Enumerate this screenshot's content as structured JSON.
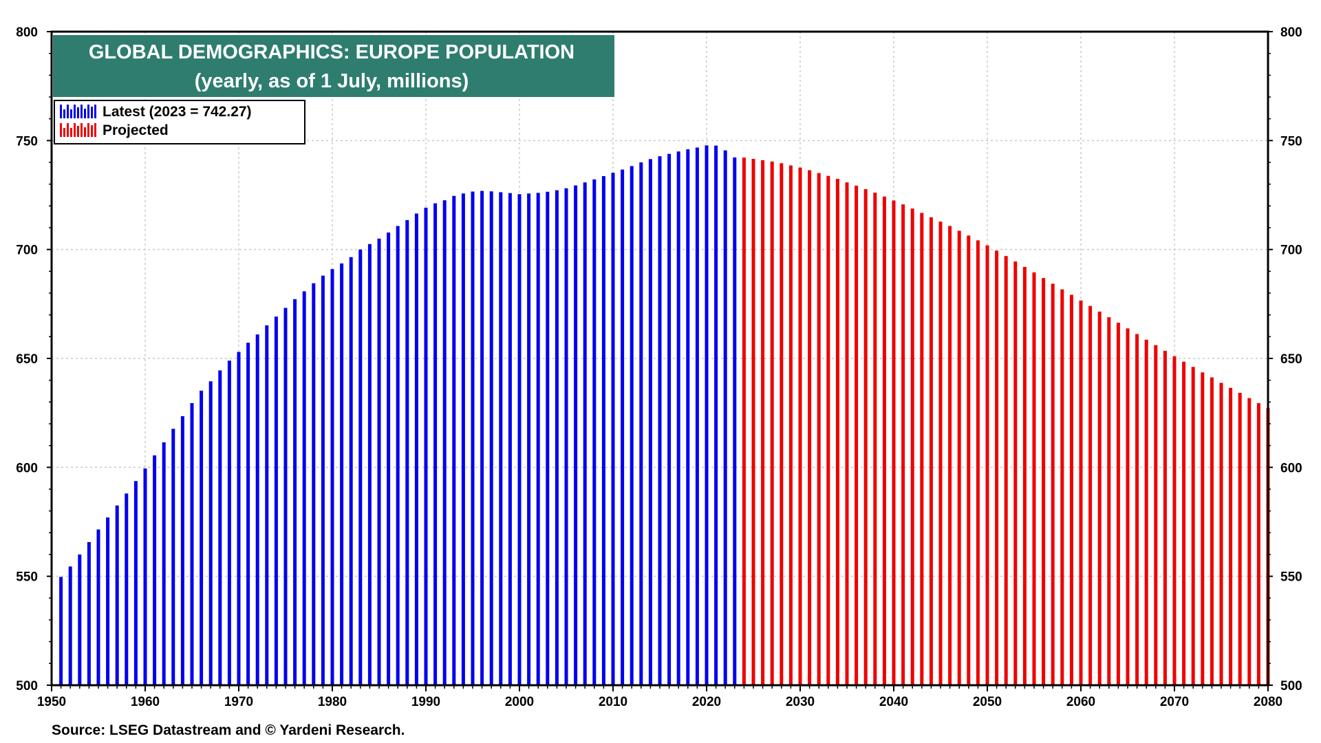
{
  "title": "GLOBAL DEMOGRAPHICS: EUROPE POPULATION",
  "subtitle": "(yearly, as of 1 July, millions)",
  "source": "Source: LSEG Datastream and © Yardeni Research.",
  "colors": {
    "title_bg": "#2e7d6f",
    "latest": "#0000ee",
    "projected": "#ee0000",
    "grid": "#c8c8c8"
  },
  "legend": {
    "latest_label": "Latest (2023 = 742.27)",
    "projected_label": "Projected",
    "placement": "top-left"
  },
  "chart_data": {
    "type": "bar",
    "title": "GLOBAL DEMOGRAPHICS: EUROPE POPULATION",
    "subtitle": "(yearly, as of 1 July, millions)",
    "xlabel": "",
    "ylabel": "",
    "ylim": [
      500,
      800
    ],
    "xlim": [
      1950,
      2080
    ],
    "yticks": [
      500,
      550,
      600,
      650,
      700,
      750,
      800
    ],
    "xticks": [
      1950,
      1960,
      1970,
      1980,
      1990,
      2000,
      2010,
      2020,
      2030,
      2040,
      2050,
      2060,
      2070,
      2080
    ],
    "grid": true,
    "axes": "left-and-right",
    "series": [
      {
        "name": "Latest (2023 = 742.27)",
        "color": "#0000ee",
        "x": [
          1951,
          1952,
          1953,
          1954,
          1955,
          1956,
          1957,
          1958,
          1959,
          1960,
          1961,
          1962,
          1963,
          1964,
          1965,
          1966,
          1967,
          1968,
          1969,
          1970,
          1971,
          1972,
          1973,
          1974,
          1975,
          1976,
          1977,
          1978,
          1979,
          1980,
          1981,
          1982,
          1983,
          1984,
          1985,
          1986,
          1987,
          1988,
          1989,
          1990,
          1991,
          1992,
          1993,
          1994,
          1995,
          1996,
          1997,
          1998,
          1999,
          2000,
          2001,
          2002,
          2003,
          2004,
          2005,
          2006,
          2007,
          2008,
          2009,
          2010,
          2011,
          2012,
          2013,
          2014,
          2015,
          2016,
          2017,
          2018,
          2019,
          2020,
          2021,
          2022,
          2023
        ],
        "values": [
          549.7,
          554.5,
          560,
          565.7,
          571.5,
          577,
          582.5,
          588,
          593.7,
          599.5,
          605.5,
          611.5,
          617.7,
          623.5,
          629.5,
          635.2,
          639.5,
          644.5,
          649,
          653,
          657.2,
          661,
          665.2,
          669.2,
          673.2,
          677.2,
          680.8,
          684.5,
          688,
          691,
          693.6,
          696.5,
          700,
          702.5,
          705,
          707.8,
          710.8,
          713.5,
          716.5,
          719.2,
          721.2,
          722.6,
          724.6,
          725.7,
          726.6,
          726.9,
          726.7,
          726.3,
          725.9,
          725.4,
          725.7,
          726,
          726.5,
          727.2,
          728.1,
          729.4,
          730.8,
          732.2,
          733.7,
          735.2,
          736.7,
          738.3,
          740,
          741.5,
          742.8,
          743.9,
          745,
          746,
          746.8,
          747.8,
          747.7,
          745.5,
          742.27
        ]
      },
      {
        "name": "Projected",
        "color": "#ee0000",
        "x": [
          2024,
          2025,
          2026,
          2027,
          2028,
          2029,
          2030,
          2031,
          2032,
          2033,
          2034,
          2035,
          2036,
          2037,
          2038,
          2039,
          2040,
          2041,
          2042,
          2043,
          2044,
          2045,
          2046,
          2047,
          2048,
          2049,
          2050,
          2051,
          2052,
          2053,
          2054,
          2055,
          2056,
          2057,
          2058,
          2059,
          2060,
          2061,
          2062,
          2063,
          2064,
          2065,
          2066,
          2067,
          2068,
          2069,
          2070,
          2071,
          2072,
          2073,
          2074,
          2075,
          2076,
          2077,
          2078,
          2079,
          2080
        ],
        "values": [
          742.2,
          741.6,
          741,
          740.4,
          739.6,
          738.6,
          737.6,
          736.4,
          735.1,
          733.8,
          732.4,
          730.8,
          729.3,
          727.7,
          726.1,
          724.3,
          722.5,
          720.7,
          718.8,
          716.8,
          714.8,
          712.8,
          710.8,
          708.6,
          706.4,
          704.2,
          701.9,
          699.5,
          697,
          694.5,
          692,
          689.5,
          686.9,
          684.3,
          681.7,
          679.2,
          676.6,
          674.1,
          671.5,
          668.9,
          666.4,
          663.8,
          661.2,
          658.6,
          656.1,
          653.5,
          651,
          648.5,
          646.1,
          643.6,
          641.3,
          638.8,
          636.5,
          634.2,
          631.8,
          629.5,
          627.2
        ]
      }
    ]
  }
}
